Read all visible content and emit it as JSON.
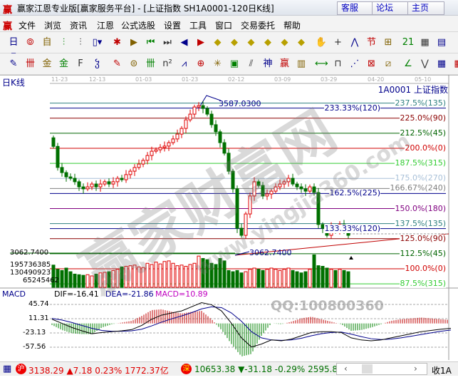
{
  "window": {
    "title": "赢家江恩专业版[赢家服务平台] - [上证指数  SH1A0001-120日K线]",
    "logo": "赢",
    "buttons": [
      "客服",
      "论坛",
      "主页"
    ]
  },
  "menu": [
    "文件",
    "浏览",
    "资讯",
    "江恩",
    "公式选股",
    "设置",
    "工具",
    "窗口",
    "交易委托",
    "帮助"
  ],
  "toolbar1": [
    [
      "day-period-dropdown",
      "日▾"
    ],
    [
      "wave-icon",
      "⦾"
    ],
    [
      "self-select-icon",
      "自"
    ],
    [
      "bar3-icon",
      "⫶"
    ],
    [
      "bar9-icon",
      "⫶"
    ],
    [
      "candle-dropdown",
      "▯▾"
    ],
    [
      "formula-icon",
      "✱"
    ],
    [
      "flag-icon",
      "▶"
    ],
    [
      "first-icon",
      "⏮"
    ],
    [
      "last-icon",
      "⏭"
    ],
    [
      "prev-icon",
      "◀"
    ],
    [
      "next-icon",
      "▶"
    ],
    [
      "left-arrow-icon",
      "◆"
    ],
    [
      "right-arrow-icon",
      "◆"
    ],
    [
      "expand-icon",
      "◆"
    ],
    [
      "zoom-in-icon",
      "◆"
    ],
    [
      "zoom-out-icon",
      "◆"
    ],
    [
      "vertical-icon",
      "◆"
    ],
    [
      "hand-icon",
      "✋"
    ],
    [
      "crosshair-icon",
      "+"
    ],
    [
      "line-icon",
      "⋀"
    ],
    [
      "grid-icon",
      "节"
    ],
    [
      "calc-icon",
      "⊞"
    ],
    [
      "calendar-icon",
      "21"
    ],
    [
      "calculator-icon",
      "▦"
    ],
    [
      "notes-icon",
      "▤"
    ]
  ],
  "toolbar2": [
    [
      "pen-icon",
      "✎"
    ],
    [
      "parallel-icon",
      "卌"
    ],
    [
      "gold1-icon",
      "金"
    ],
    [
      "gold2-icon",
      "金"
    ],
    [
      "fan-icon",
      "F"
    ],
    [
      "spiral-icon",
      "ჴ"
    ],
    [
      "pen2-icon",
      "✎"
    ],
    [
      "circle-icon",
      "⊜"
    ],
    [
      "cycle-icon",
      "卌"
    ],
    [
      "square-icon",
      "n²"
    ],
    [
      "angle-icon",
      "⩘"
    ],
    [
      "target-icon",
      "⊕"
    ],
    [
      "star-icon",
      "✳"
    ],
    [
      "box-icon",
      "▣"
    ],
    [
      "lines-icon",
      "⫽"
    ],
    [
      "gann-icon",
      "神"
    ],
    [
      "gann2-icon",
      "赢"
    ],
    [
      "ruler-icon",
      "▥"
    ],
    [
      "width-icon",
      "⟷"
    ],
    [
      "square2-icon",
      "⊓"
    ],
    [
      "rays-icon",
      "⋰"
    ],
    [
      "box2-icon",
      "⊠"
    ],
    [
      "box3-icon",
      "⧄"
    ],
    [
      "angle2-icon",
      "∠"
    ],
    [
      "v-icon",
      "⋁"
    ],
    [
      "grid2-icon",
      "▦"
    ],
    [
      "grid3-icon",
      "▦"
    ]
  ],
  "chart": {
    "period_label": "日K线",
    "symbol": "1A0001  上证指数",
    "dates": [
      "11-23",
      "12-13",
      "01-03",
      "01-23",
      "02-12",
      "03-09",
      "03-29",
      "04-20",
      "05-10"
    ],
    "high_label": "3587.0300",
    "low_label": "3062.7400",
    "low_axis_label": "3062.7400",
    "volume_labels": [
      "195736385",
      "130490923",
      "65245462"
    ],
    "fib": [
      {
        "pct": 237.5,
        "label": "237.5%(135)",
        "color": "#2f8080"
      },
      {
        "pct": 233.33,
        "label": "233.33%(120)",
        "color": "#00008b"
      },
      {
        "pct": 225,
        "label": "225.0%(90)",
        "color": "#8b0000"
      },
      {
        "pct": 212.5,
        "label": "212.5%(45)",
        "color": "#006400"
      },
      {
        "pct": 200,
        "label": "200.0%(0)",
        "color": "#d00000"
      },
      {
        "pct": 187.5,
        "label": "187.5%(315)",
        "color": "#33cc33"
      },
      {
        "pct": 175,
        "label": "175.0%(270)",
        "color": "#a8c0d8"
      },
      {
        "pct": 166.67,
        "label": "166.67%(240)",
        "color": "#808080"
      },
      {
        "pct": 162.5,
        "label": "162.5%(225)",
        "color": "#00008b"
      },
      {
        "pct": 150,
        "label": "150.0%(180)",
        "color": "#800080"
      },
      {
        "pct": 137.5,
        "label": "137.5%(135)",
        "color": "#2f8080"
      },
      {
        "pct": 133.33,
        "label": "133.33%(120)",
        "color": "#00008b"
      },
      {
        "pct": 125,
        "label": "125.0%(90)",
        "color": "#8b0000"
      },
      {
        "pct": 112.5,
        "label": "112.5%(45)",
        "color": "#006400"
      },
      {
        "pct": 100,
        "label": "100.0%(0)",
        "color": "#d00000"
      },
      {
        "pct": 87.5,
        "label": "87.5%(315)",
        "color": "#33cc33"
      }
    ],
    "closes": [
      3437,
      3363,
      3345,
      3330,
      3325,
      3313,
      3295,
      3288,
      3295,
      3305,
      3295,
      3305,
      3313,
      3305,
      3313,
      3325,
      3320,
      3338,
      3350,
      3363,
      3375,
      3388,
      3405,
      3420,
      3425,
      3433,
      3438,
      3450,
      3463,
      3480,
      3500,
      3530,
      3550,
      3575,
      3580,
      3570,
      3550,
      3513,
      3488,
      3450,
      3413,
      3350,
      3288,
      3150,
      3125,
      3200,
      3263,
      3313,
      3300,
      3263,
      3270,
      3280,
      3295,
      3305,
      3313,
      3325,
      3305,
      3295,
      3288,
      3280,
      3295,
      3275,
      3163,
      3150,
      3125,
      3155,
      3145,
      3163,
      3138,
      3125
    ],
    "volumes": [
      185,
      150,
      140,
      160,
      130,
      110,
      105,
      100,
      105,
      95,
      110,
      120,
      125,
      130,
      140,
      150,
      170,
      175,
      180,
      185,
      170,
      165,
      200,
      190,
      210,
      195,
      215,
      220,
      200,
      180,
      185,
      175,
      190,
      200,
      260,
      240,
      230,
      200,
      190,
      240,
      220,
      140,
      130,
      140,
      120,
      130,
      150,
      160,
      150,
      140,
      150,
      160,
      150,
      140,
      150,
      160,
      140,
      130,
      120,
      130,
      150,
      270,
      180,
      175,
      160,
      150,
      140,
      150,
      140,
      130
    ]
  },
  "macd": {
    "name": "MACD",
    "dif_label": "DIF=-16.41",
    "dea_label": "DEA=-21.86",
    "macd_label": "MACD=10.89",
    "axis": [
      "45.74",
      "11.31",
      "-23.13",
      "-57.56"
    ],
    "dif": [
      10,
      0,
      -10,
      -18,
      -25,
      -22,
      -20,
      -18,
      -15,
      -5,
      10,
      20,
      25,
      30,
      40,
      50,
      45,
      30,
      0,
      -35,
      -57,
      -50,
      -40,
      -42,
      -38,
      -30,
      -22,
      -20,
      -20,
      -22,
      -35,
      -40,
      -42,
      -40,
      -35,
      -30,
      -25,
      -20,
      -17,
      -14,
      -12
    ],
    "dea": [
      12,
      8,
      2,
      -5,
      -12,
      -17,
      -19,
      -19,
      -18,
      -14,
      -6,
      3,
      11,
      18,
      26,
      35,
      40,
      38,
      25,
      5,
      -20,
      -35,
      -40,
      -41,
      -40,
      -36,
      -30,
      -25,
      -22,
      -21,
      -26,
      -32,
      -37,
      -39,
      -38,
      -35,
      -31,
      -27,
      -23,
      -19,
      -16
    ],
    "colors": {
      "dif": "#000000",
      "dea": "#00008b",
      "up": "#c00000",
      "down": "#008000"
    }
  },
  "watermark": {
    "qq": "QQ:100800360"
  },
  "status": {
    "sh_icon": "沪",
    "sh": "3138.29 ▲7.18 0.23% 1772.37亿",
    "sz_icon": "深",
    "sz": "10653.38 ▼-31.18 -0.29% 2595.80",
    "right": "收1A"
  },
  "colors": {
    "up": "#e00000",
    "down": "#007000"
  }
}
